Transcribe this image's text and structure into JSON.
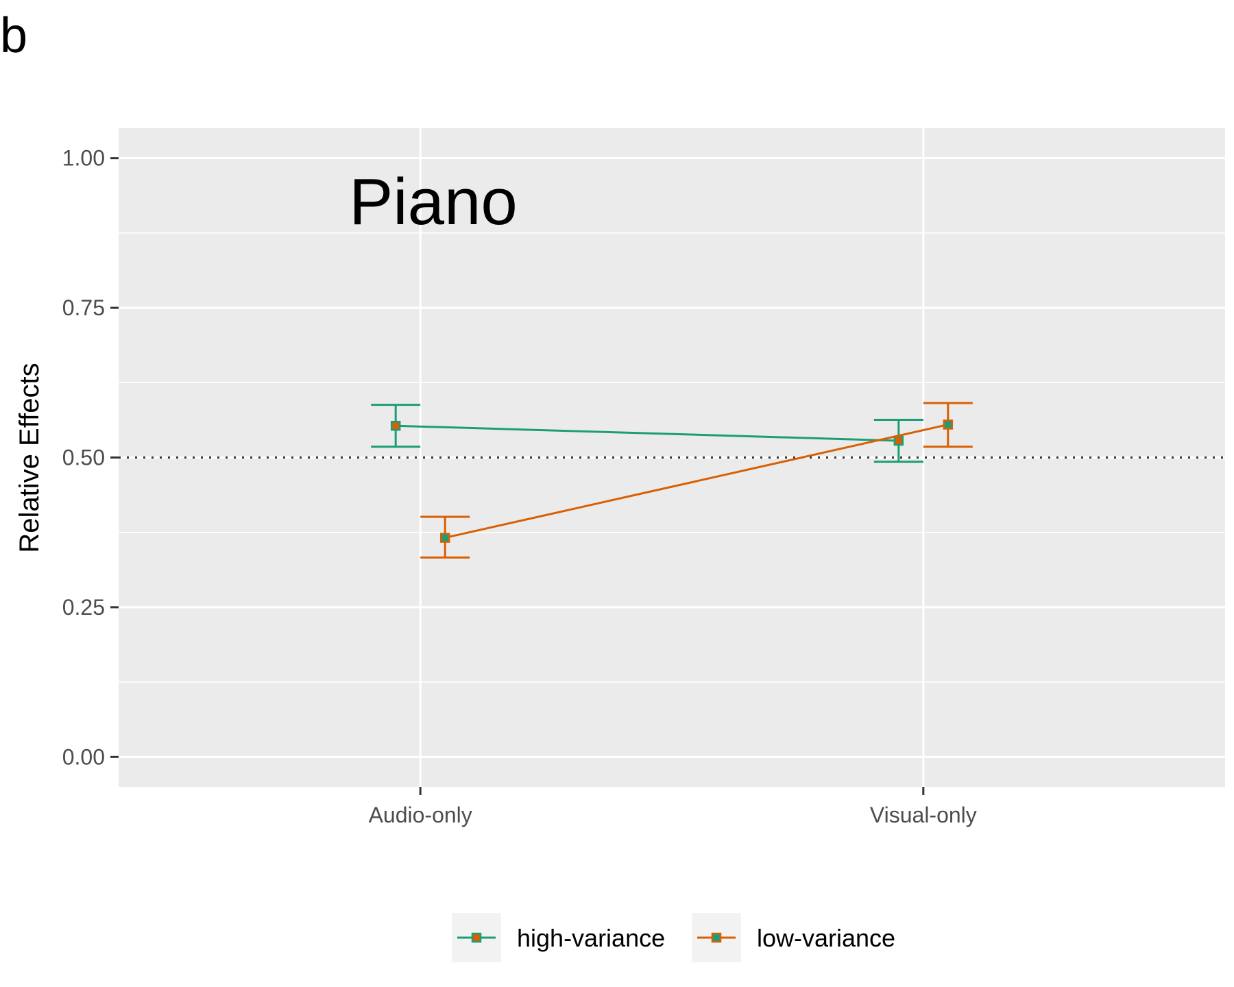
{
  "panel_label": "b",
  "chart_data": {
    "type": "line",
    "title": "",
    "annotation": "Piano",
    "xlabel": "",
    "ylabel": "Relative Effects",
    "categories": [
      "Audio-only",
      "Visual-only"
    ],
    "ylim": [
      -0.05,
      1.05
    ],
    "yticks": [
      0.0,
      0.25,
      0.5,
      0.75,
      1.0
    ],
    "ytick_labels": [
      "0.00",
      "0.25",
      "0.50",
      "0.75",
      "1.00"
    ],
    "reference_line": 0.5,
    "grid": true,
    "legend_position": "bottom",
    "series": [
      {
        "name": "high-variance",
        "color": "#1b9e77",
        "marker_fill": "#d95f02",
        "values": [
          0.553,
          0.528
        ],
        "lower": [
          0.518,
          0.493
        ],
        "upper": [
          0.588,
          0.563
        ]
      },
      {
        "name": "low-variance",
        "color": "#d95f02",
        "marker_fill": "#1b9e77",
        "values": [
          0.366,
          0.555
        ],
        "lower": [
          0.333,
          0.518
        ],
        "upper": [
          0.401,
          0.591
        ]
      }
    ]
  }
}
